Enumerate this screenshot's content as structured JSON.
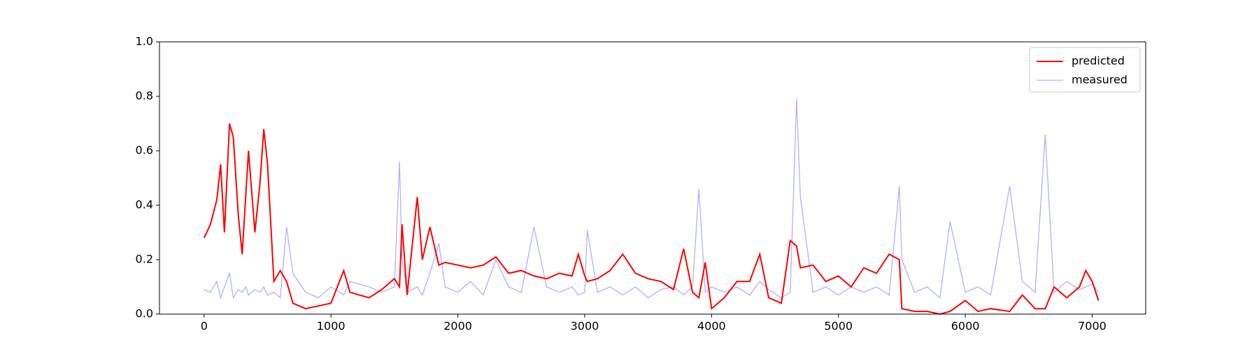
{
  "chart_data": {
    "type": "line",
    "x": [
      0,
      50,
      100,
      130,
      160,
      200,
      230,
      270,
      300,
      330,
      350,
      400,
      440,
      470,
      500,
      550,
      600,
      650,
      700,
      800,
      900,
      1000,
      1100,
      1150,
      1300,
      1400,
      1500,
      1540,
      1560,
      1600,
      1680,
      1720,
      1780,
      1850,
      1900,
      2000,
      2100,
      2200,
      2300,
      2400,
      2500,
      2600,
      2700,
      2800,
      2900,
      2950,
      3000,
      3020,
      3100,
      3200,
      3300,
      3400,
      3500,
      3600,
      3700,
      3780,
      3850,
      3900,
      3950,
      4000,
      4100,
      4200,
      4300,
      4380,
      4450,
      4550,
      4620,
      4670,
      4700,
      4800,
      4900,
      5000,
      5100,
      5200,
      5300,
      5400,
      5480,
      5500,
      5600,
      5700,
      5800,
      5880,
      6000,
      6100,
      6200,
      6350,
      6450,
      6550,
      6630,
      6700,
      6800,
      6900,
      6950,
      7000,
      7050
    ],
    "series": [
      {
        "name": "predicted",
        "color": "#ff0000",
        "values": [
          0.28,
          0.33,
          0.42,
          0.55,
          0.3,
          0.7,
          0.65,
          0.36,
          0.22,
          0.45,
          0.6,
          0.3,
          0.48,
          0.68,
          0.55,
          0.12,
          0.16,
          0.12,
          0.04,
          0.02,
          0.03,
          0.04,
          0.16,
          0.08,
          0.06,
          0.09,
          0.13,
          0.1,
          0.33,
          0.07,
          0.43,
          0.2,
          0.32,
          0.18,
          0.19,
          0.18,
          0.17,
          0.18,
          0.21,
          0.15,
          0.16,
          0.14,
          0.13,
          0.15,
          0.14,
          0.22,
          0.14,
          0.12,
          0.13,
          0.16,
          0.22,
          0.15,
          0.13,
          0.12,
          0.09,
          0.24,
          0.08,
          0.06,
          0.19,
          0.02,
          0.06,
          0.12,
          0.12,
          0.22,
          0.06,
          0.04,
          0.27,
          0.25,
          0.17,
          0.18,
          0.12,
          0.14,
          0.1,
          0.17,
          0.15,
          0.22,
          0.2,
          0.02,
          0.01,
          0.01,
          0.0,
          0.01,
          0.05,
          0.01,
          0.02,
          0.01,
          0.07,
          0.02,
          0.02,
          0.1,
          0.06,
          0.1,
          0.16,
          0.12,
          0.05
        ]
      },
      {
        "name": "measured",
        "color": "#b0b0ff",
        "values": [
          0.09,
          0.08,
          0.12,
          0.06,
          0.1,
          0.15,
          0.06,
          0.09,
          0.08,
          0.1,
          0.07,
          0.09,
          0.08,
          0.1,
          0.07,
          0.08,
          0.06,
          0.32,
          0.15,
          0.08,
          0.06,
          0.1,
          0.07,
          0.12,
          0.1,
          0.08,
          0.1,
          0.56,
          0.2,
          0.08,
          0.1,
          0.07,
          0.15,
          0.26,
          0.1,
          0.08,
          0.12,
          0.07,
          0.2,
          0.1,
          0.08,
          0.32,
          0.1,
          0.08,
          0.1,
          0.07,
          0.08,
          0.31,
          0.08,
          0.1,
          0.07,
          0.1,
          0.06,
          0.09,
          0.1,
          0.07,
          0.1,
          0.46,
          0.08,
          0.1,
          0.08,
          0.1,
          0.07,
          0.12,
          0.09,
          0.06,
          0.08,
          0.79,
          0.43,
          0.08,
          0.1,
          0.07,
          0.1,
          0.08,
          0.1,
          0.07,
          0.47,
          0.2,
          0.08,
          0.1,
          0.06,
          0.34,
          0.08,
          0.1,
          0.07,
          0.47,
          0.12,
          0.08,
          0.66,
          0.08,
          0.12,
          0.09,
          0.1,
          0.11,
          0.08
        ]
      }
    ],
    "xlim": [
      -352,
      7422
    ],
    "xticks": [
      0,
      1000,
      2000,
      3000,
      4000,
      5000,
      6000,
      7000
    ],
    "ylim": [
      0,
      1
    ],
    "yticks": [
      {
        "value": 0,
        "label": "0.0"
      },
      0.2,
      0.4,
      0.6,
      0.8,
      {
        "value": 1,
        "label": "1.0"
      }
    ],
    "legend": "upper right"
  }
}
